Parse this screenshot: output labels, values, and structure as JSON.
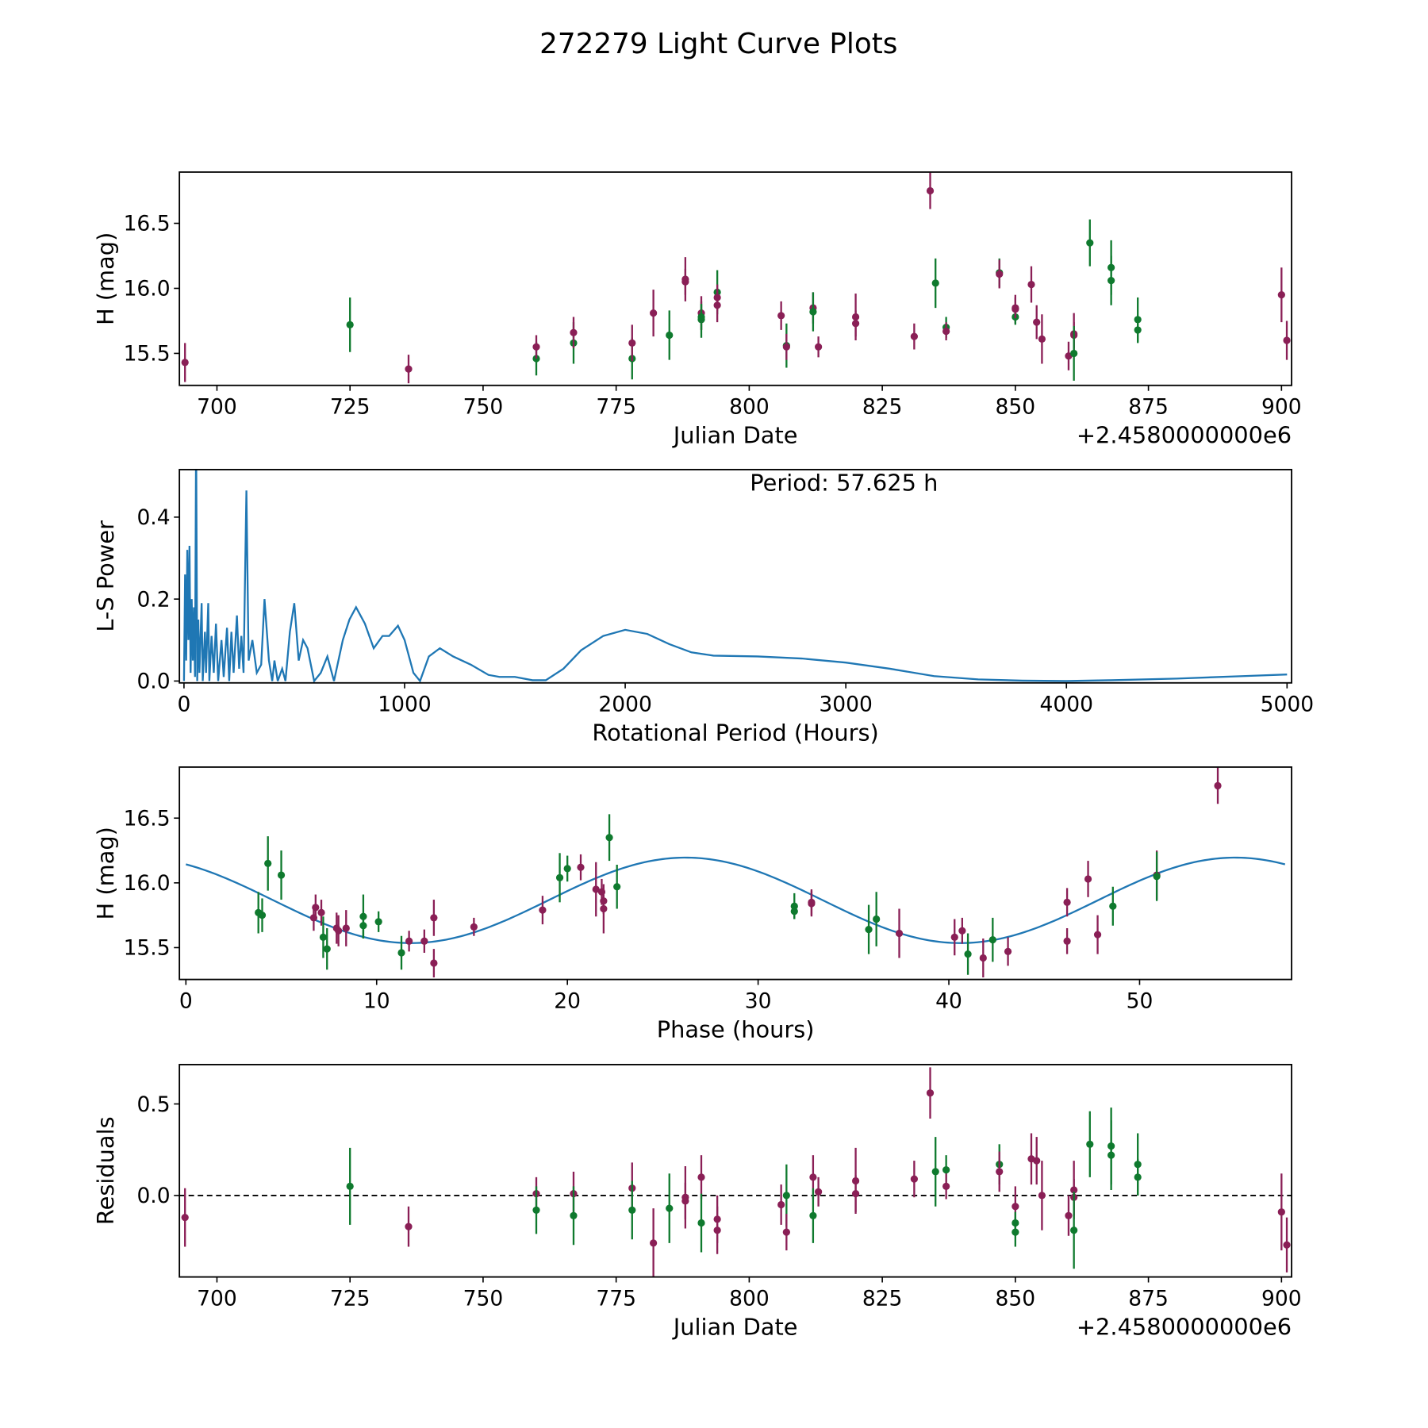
{
  "title": "272279 Light Curve Plots",
  "colors": {
    "maroon": "#8a1f56",
    "green": "#0f7a2e",
    "line": "#1f77b4"
  },
  "chart_data": [
    {
      "type": "scatter",
      "id": "lightcurve",
      "xlabel": "Julian Date",
      "ylabel": "H (mag)",
      "offset_label": "+2.4580000000e6",
      "xlim": [
        692.95,
        901.9
      ],
      "ylim": [
        15.254,
        16.894
      ],
      "xticks": [
        700,
        725,
        750,
        775,
        800,
        825,
        850,
        875,
        900
      ],
      "yticks": [
        15.5,
        16.0,
        16.5
      ],
      "points": [
        [
          694,
          15.43,
          "m",
          0.15
        ],
        [
          725,
          15.72,
          "g",
          0.21
        ],
        [
          736,
          15.38,
          "m",
          0.11
        ],
        [
          760,
          15.46,
          "g",
          0.13
        ],
        [
          760,
          15.55,
          "m",
          0.09
        ],
        [
          767,
          15.58,
          "g",
          0.16
        ],
        [
          767,
          15.66,
          "m",
          0.12
        ],
        [
          778,
          15.46,
          "g",
          0.16
        ],
        [
          778,
          15.58,
          "m",
          0.14
        ],
        [
          782,
          15.81,
          "m",
          0.18
        ],
        [
          785,
          15.64,
          "g",
          0.19
        ],
        [
          788,
          16.07,
          "m",
          0.17
        ],
        [
          788,
          16.05,
          "m",
          0.1
        ],
        [
          791,
          15.76,
          "g",
          0.14
        ],
        [
          791,
          15.81,
          "m",
          0.13
        ],
        [
          791,
          15.78,
          "g",
          0.1
        ],
        [
          794,
          15.97,
          "g",
          0.17
        ],
        [
          794,
          15.93,
          "m",
          0.1
        ],
        [
          794,
          15.87,
          "m",
          0.13
        ],
        [
          806,
          15.79,
          "m",
          0.11
        ],
        [
          807,
          15.56,
          "g",
          0.17
        ],
        [
          807,
          15.55,
          "m",
          0.1
        ],
        [
          812,
          15.85,
          "m",
          0.12
        ],
        [
          812,
          15.82,
          "g",
          0.15
        ],
        [
          813,
          15.55,
          "m",
          0.08
        ],
        [
          820,
          15.78,
          "m",
          0.18
        ],
        [
          820,
          15.73,
          "m",
          0.1
        ],
        [
          831,
          15.63,
          "m",
          0.1
        ],
        [
          834,
          16.75,
          "m",
          0.14
        ],
        [
          835,
          16.04,
          "g",
          0.19
        ],
        [
          837,
          15.7,
          "g",
          0.08
        ],
        [
          837,
          15.67,
          "m",
          0.07
        ],
        [
          847,
          16.12,
          "g",
          0.11
        ],
        [
          847,
          16.11,
          "m",
          0.11
        ],
        [
          850,
          15.84,
          "m",
          0.11
        ],
        [
          850,
          15.78,
          "g",
          0.06
        ],
        [
          850,
          15.85,
          "m",
          0.08
        ],
        [
          853,
          16.03,
          "m",
          0.14
        ],
        [
          854,
          15.74,
          "m",
          0.13
        ],
        [
          855,
          15.61,
          "m",
          0.19
        ],
        [
          860,
          15.48,
          "m",
          0.11
        ],
        [
          861,
          15.65,
          "m",
          0.16
        ],
        [
          861,
          15.64,
          "m",
          0.1
        ],
        [
          861,
          15.5,
          "g",
          0.21
        ],
        [
          864,
          16.35,
          "g",
          0.18
        ],
        [
          868,
          16.16,
          "g",
          0.21
        ],
        [
          868,
          16.06,
          "g",
          0.19
        ],
        [
          873,
          15.76,
          "g",
          0.17
        ],
        [
          873,
          15.68,
          "g",
          0.1
        ],
        [
          900,
          15.95,
          "m",
          0.21
        ],
        [
          901,
          15.6,
          "m",
          0.15
        ]
      ]
    },
    {
      "type": "line",
      "id": "periodogram",
      "xlabel": "Rotational Period (Hours)",
      "ylabel": "L-S Power",
      "annotation": "Period: 57.625 h",
      "xlim": [
        -20.7,
        5020.7
      ],
      "ylim": [
        -0.0045,
        0.516
      ],
      "xticks": [
        0,
        1000,
        2000,
        3000,
        4000,
        5000
      ],
      "yticks": [
        0.0,
        0.2,
        0.4
      ],
      "ytick_format": 1,
      "points": [
        [
          0,
          0
        ],
        [
          5,
          0.26
        ],
        [
          10,
          0.05
        ],
        [
          15,
          0.32
        ],
        [
          20,
          0.1
        ],
        [
          25,
          0.33
        ],
        [
          30,
          0.02
        ],
        [
          35,
          0.2
        ],
        [
          40,
          0.05
        ],
        [
          45,
          0.18
        ],
        [
          50,
          0.01
        ],
        [
          55,
          0.6
        ],
        [
          60,
          0.0
        ],
        [
          65,
          0.15
        ],
        [
          70,
          0.02
        ],
        [
          80,
          0.19
        ],
        [
          85,
          0.0
        ],
        [
          95,
          0.12
        ],
        [
          100,
          0.02
        ],
        [
          110,
          0.19
        ],
        [
          115,
          0.0
        ],
        [
          125,
          0.11
        ],
        [
          135,
          0.02
        ],
        [
          145,
          0.14
        ],
        [
          155,
          0.0
        ],
        [
          170,
          0.1
        ],
        [
          180,
          0.01
        ],
        [
          195,
          0.13
        ],
        [
          205,
          0.0
        ],
        [
          215,
          0.12
        ],
        [
          225,
          0.02
        ],
        [
          240,
          0.16
        ],
        [
          250,
          0.03
        ],
        [
          260,
          0.11
        ],
        [
          270,
          0.02
        ],
        [
          283,
          0.465
        ],
        [
          293,
          0.05
        ],
        [
          310,
          0.1
        ],
        [
          330,
          0.02
        ],
        [
          350,
          0.04
        ],
        [
          365,
          0.2
        ],
        [
          385,
          0.05
        ],
        [
          400,
          0.0
        ],
        [
          410,
          0.05
        ],
        [
          425,
          0.0
        ],
        [
          445,
          0.03
        ],
        [
          460,
          0.0
        ],
        [
          480,
          0.12
        ],
        [
          500,
          0.19
        ],
        [
          520,
          0.05
        ],
        [
          540,
          0.1
        ],
        [
          560,
          0.08
        ],
        [
          590,
          0.0
        ],
        [
          620,
          0.02
        ],
        [
          650,
          0.06
        ],
        [
          680,
          0.0
        ],
        [
          720,
          0.1
        ],
        [
          750,
          0.15
        ],
        [
          780,
          0.18
        ],
        [
          820,
          0.14
        ],
        [
          860,
          0.08
        ],
        [
          900,
          0.11
        ],
        [
          930,
          0.11
        ],
        [
          970,
          0.135
        ],
        [
          1000,
          0.1
        ],
        [
          1040,
          0.02
        ],
        [
          1070,
          0.0
        ],
        [
          1110,
          0.06
        ],
        [
          1160,
          0.08
        ],
        [
          1220,
          0.06
        ],
        [
          1300,
          0.04
        ],
        [
          1380,
          0.015
        ],
        [
          1430,
          0.01
        ],
        [
          1500,
          0.01
        ],
        [
          1580,
          0.002
        ],
        [
          1640,
          0.002
        ],
        [
          1720,
          0.03
        ],
        [
          1800,
          0.075
        ],
        [
          1900,
          0.11
        ],
        [
          2000,
          0.125
        ],
        [
          2100,
          0.115
        ],
        [
          2200,
          0.09
        ],
        [
          2300,
          0.07
        ],
        [
          2400,
          0.062
        ],
        [
          2600,
          0.06
        ],
        [
          2800,
          0.055
        ],
        [
          3000,
          0.045
        ],
        [
          3200,
          0.03
        ],
        [
          3400,
          0.012
        ],
        [
          3600,
          0.004
        ],
        [
          3800,
          0.001
        ],
        [
          4000,
          0.0
        ],
        [
          4200,
          0.002
        ],
        [
          4500,
          0.006
        ],
        [
          4800,
          0.012
        ],
        [
          5000,
          0.016
        ]
      ]
    },
    {
      "type": "scatter",
      "id": "phased",
      "xlabel": "Phase (hours)",
      "ylabel": "H (mag)",
      "xlim": [
        -0.34,
        57.97
      ],
      "ylim": [
        15.254,
        16.894
      ],
      "xticks": [
        0,
        10,
        20,
        30,
        40,
        50
      ],
      "yticks": [
        15.5,
        16.0,
        16.5
      ],
      "fit": {
        "mean": 15.865,
        "amplitude": 0.33,
        "peak_phase": 26.2,
        "period": 28.8125,
        "range": [
          0,
          57.625
        ]
      },
      "points": [
        [
          3.8,
          15.77,
          "g",
          0.16
        ],
        [
          4.0,
          15.75,
          "g",
          0.13
        ],
        [
          4.3,
          16.15,
          "g",
          0.21
        ],
        [
          5.0,
          16.06,
          "g",
          0.19
        ],
        [
          6.7,
          15.73,
          "m",
          0.1
        ],
        [
          6.8,
          15.81,
          "m",
          0.1
        ],
        [
          7.1,
          15.77,
          "m",
          0.1
        ],
        [
          7.2,
          15.58,
          "g",
          0.16
        ],
        [
          7.4,
          15.49,
          "g",
          0.16
        ],
        [
          7.9,
          15.65,
          "m",
          0.12
        ],
        [
          8.0,
          15.63,
          "m",
          0.12
        ],
        [
          8.4,
          15.65,
          "m",
          0.14
        ],
        [
          9.3,
          15.74,
          "g",
          0.17
        ],
        [
          9.3,
          15.67,
          "g",
          0.1
        ],
        [
          10.1,
          15.7,
          "g",
          0.08
        ],
        [
          11.3,
          15.46,
          "g",
          0.13
        ],
        [
          11.7,
          15.55,
          "m",
          0.08
        ],
        [
          12.5,
          15.55,
          "m",
          0.09
        ],
        [
          13.0,
          15.73,
          "m",
          0.14
        ],
        [
          13.0,
          15.38,
          "m",
          0.11
        ],
        [
          15.1,
          15.66,
          "m",
          0.07
        ],
        [
          18.7,
          15.79,
          "m",
          0.11
        ],
        [
          19.6,
          16.04,
          "g",
          0.19
        ],
        [
          20.0,
          16.11,
          "g",
          0.1
        ],
        [
          20.7,
          16.12,
          "m",
          0.1
        ],
        [
          21.5,
          15.95,
          "m",
          0.21
        ],
        [
          21.8,
          15.93,
          "m",
          0.1
        ],
        [
          21.9,
          15.86,
          "m",
          0.1
        ],
        [
          21.9,
          15.8,
          "m",
          0.19
        ],
        [
          22.2,
          16.35,
          "g",
          0.18
        ],
        [
          22.6,
          15.97,
          "g",
          0.17
        ],
        [
          31.9,
          15.82,
          "g",
          0.1
        ],
        [
          31.9,
          15.78,
          "g",
          0.06
        ],
        [
          32.8,
          15.84,
          "m",
          0.1
        ],
        [
          32.8,
          15.85,
          "m",
          0.1
        ],
        [
          35.8,
          15.64,
          "g",
          0.19
        ],
        [
          36.2,
          15.72,
          "g",
          0.21
        ],
        [
          37.4,
          15.61,
          "m",
          0.19
        ],
        [
          40.3,
          15.58,
          "m",
          0.14
        ],
        [
          40.7,
          15.63,
          "m",
          0.1
        ],
        [
          41.0,
          15.45,
          "g",
          0.16
        ],
        [
          41.8,
          15.42,
          "m",
          0.15
        ],
        [
          42.3,
          15.56,
          "g",
          0.17
        ],
        [
          43.1,
          15.47,
          "m",
          0.11
        ],
        [
          46.2,
          15.85,
          "m",
          0.11
        ],
        [
          46.2,
          15.55,
          "m",
          0.1
        ],
        [
          47.3,
          16.03,
          "m",
          0.14
        ],
        [
          47.8,
          15.6,
          "m",
          0.15
        ],
        [
          48.6,
          15.82,
          "g",
          0.15
        ],
        [
          50.9,
          16.06,
          "m",
          0.19
        ],
        [
          50.9,
          16.05,
          "g",
          0.19
        ],
        [
          54.1,
          16.75,
          "m",
          0.14
        ]
      ]
    },
    {
      "type": "scatter",
      "id": "residuals",
      "xlabel": "Julian Date",
      "ylabel": "Residuals",
      "offset_label": "+2.4580000000e6",
      "xlim": [
        692.95,
        901.9
      ],
      "ylim": [
        -0.445,
        0.715
      ],
      "xticks": [
        700,
        725,
        750,
        775,
        800,
        825,
        850,
        875,
        900
      ],
      "yticks": [
        0.0,
        0.5
      ],
      "ytick_format": 1,
      "zero_line": true,
      "points": [
        [
          694,
          -0.12,
          "m",
          0.16
        ],
        [
          725,
          0.05,
          "g",
          0.21
        ],
        [
          736,
          -0.17,
          "m",
          0.11
        ],
        [
          760,
          0.01,
          "m",
          0.09
        ],
        [
          760,
          -0.08,
          "g",
          0.13
        ],
        [
          767,
          0.01,
          "m",
          0.12
        ],
        [
          767,
          -0.11,
          "g",
          0.16
        ],
        [
          778,
          0.04,
          "m",
          0.14
        ],
        [
          778,
          -0.08,
          "g",
          0.16
        ],
        [
          782,
          -0.26,
          "m",
          0.19
        ],
        [
          785,
          -0.07,
          "g",
          0.19
        ],
        [
          788,
          -0.01,
          "m",
          0.17
        ],
        [
          788,
          -0.03,
          "m",
          0.1
        ],
        [
          791,
          0.1,
          "m",
          0.12
        ],
        [
          791,
          -0.15,
          "g",
          0.16
        ],
        [
          794,
          -0.13,
          "m",
          0.13
        ],
        [
          794,
          -0.19,
          "m",
          0.13
        ],
        [
          806,
          -0.05,
          "m",
          0.11
        ],
        [
          807,
          0.0,
          "g",
          0.17
        ],
        [
          807,
          -0.2,
          "m",
          0.1
        ],
        [
          812,
          0.1,
          "m",
          0.12
        ],
        [
          812,
          -0.11,
          "g",
          0.15
        ],
        [
          813,
          0.02,
          "m",
          0.08
        ],
        [
          820,
          0.08,
          "m",
          0.18
        ],
        [
          820,
          0.01,
          "m",
          0.1
        ],
        [
          831,
          0.09,
          "m",
          0.1
        ],
        [
          834,
          0.56,
          "m",
          0.14
        ],
        [
          835,
          0.13,
          "g",
          0.19
        ],
        [
          837,
          0.14,
          "g",
          0.08
        ],
        [
          837,
          0.05,
          "m",
          0.07
        ],
        [
          847,
          0.17,
          "g",
          0.11
        ],
        [
          847,
          0.13,
          "m",
          0.11
        ],
        [
          850,
          -0.06,
          "m",
          0.11
        ],
        [
          850,
          -0.15,
          "g",
          0.06
        ],
        [
          850,
          -0.2,
          "g",
          0.08
        ],
        [
          853,
          0.2,
          "m",
          0.14
        ],
        [
          854,
          0.19,
          "m",
          0.13
        ],
        [
          855,
          0.0,
          "m",
          0.19
        ],
        [
          860,
          -0.11,
          "m",
          0.11
        ],
        [
          861,
          0.03,
          "m",
          0.16
        ],
        [
          861,
          -0.01,
          "m",
          0.1
        ],
        [
          861,
          -0.19,
          "g",
          0.21
        ],
        [
          864,
          0.28,
          "g",
          0.18
        ],
        [
          868,
          0.27,
          "g",
          0.21
        ],
        [
          868,
          0.22,
          "g",
          0.19
        ],
        [
          873,
          0.17,
          "g",
          0.17
        ],
        [
          873,
          0.1,
          "g",
          0.1
        ],
        [
          900,
          -0.09,
          "m",
          0.21
        ],
        [
          901,
          -0.27,
          "m",
          0.15
        ]
      ]
    }
  ]
}
